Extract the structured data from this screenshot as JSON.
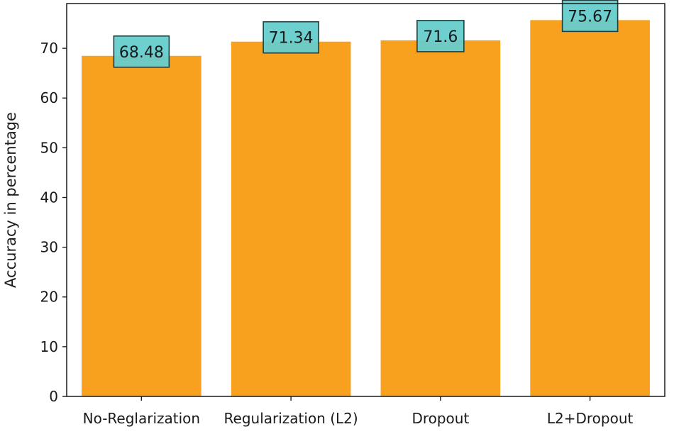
{
  "chart_data": {
    "type": "bar",
    "title": "",
    "xlabel": "",
    "ylabel": "Accuracy in percentage",
    "categories": [
      "No-Reglarization",
      "Regularization (L2)",
      "Dropout",
      "L2+Dropout"
    ],
    "values": [
      68.48,
      71.34,
      71.6,
      75.67
    ],
    "data_labels": [
      "68.48",
      "71.34",
      "71.6",
      "75.67"
    ],
    "ylim": [
      0,
      79
    ],
    "yticks": [
      0,
      10,
      20,
      30,
      40,
      50,
      60,
      70
    ],
    "grid": false,
    "legend": "none",
    "colors": {
      "bar": "#F7A11E",
      "label_box": "#66CCCC",
      "label_border": "#1f3f3f",
      "axis": "#1a1a1a"
    }
  }
}
